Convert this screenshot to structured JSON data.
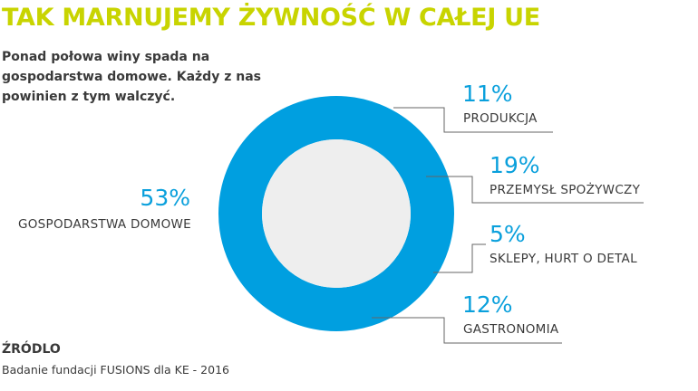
{
  "header": {
    "title": "TAK MARNUJEMY ŻYWNOŚĆ W CAŁEJ UE",
    "subtitle": "Ponad połowa winy spada na gospodarstwa domowe. Każdy z nas powinien z tym walczyć."
  },
  "source": {
    "title": "ŹRÓDLO",
    "text": "Badanie fundacji FUSIONS dla KE - 2016"
  },
  "colors": {
    "title": "#c8d400",
    "accent": "#0aa0dc",
    "ring": "#009fe0",
    "center": "#eeeeee",
    "text": "#3a3a3a",
    "leader": "#666666"
  },
  "chart_data": {
    "type": "pie",
    "style": "donut",
    "slices": [
      {
        "label": "GOSPODARSTWA  DOMOWE",
        "value": 53,
        "value_label": "53%"
      },
      {
        "label": "PRODUKCJA",
        "value": 11,
        "value_label": "11%"
      },
      {
        "label": "PRZEMYSŁ SPOŻYWCZY",
        "value": 19,
        "value_label": "19%"
      },
      {
        "label": "SKLEPY, HURT O DETAL",
        "value": 5,
        "value_label": "5%"
      },
      {
        "label": "GASTRONOMIA",
        "value": 12,
        "value_label": "12%"
      }
    ]
  }
}
